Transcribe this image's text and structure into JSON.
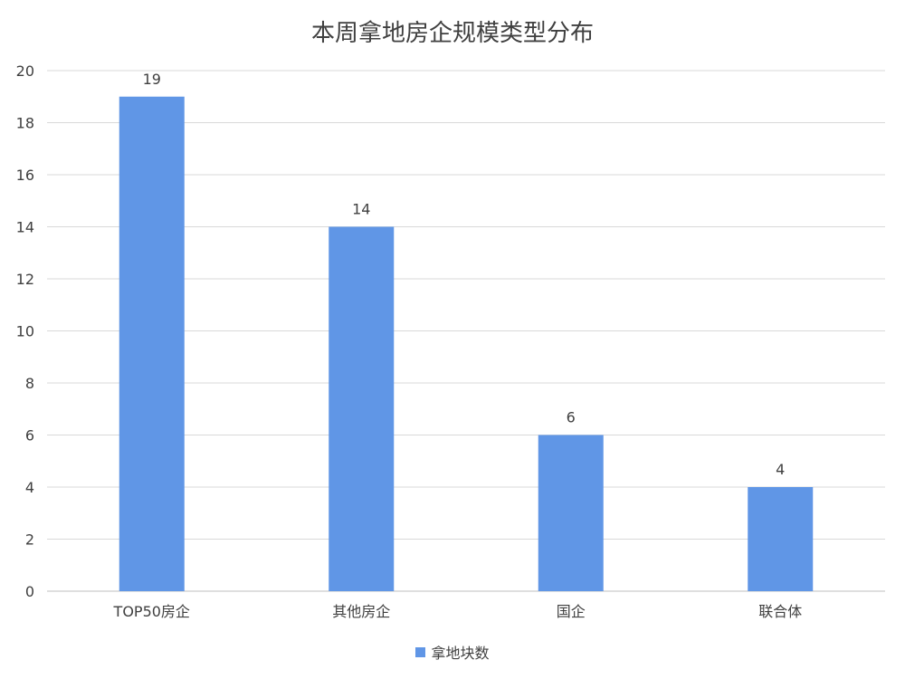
{
  "chart_data": {
    "type": "bar",
    "title": "本周拿地房企规模类型分布",
    "categories": [
      "TOP50房企",
      "其他房企",
      "国企",
      "联合体"
    ],
    "series": [
      {
        "name": "拿地块数",
        "values": [
          19,
          14,
          6,
          4
        ],
        "color": "#6096e6"
      }
    ],
    "ylim": [
      0,
      20
    ],
    "yticks": [
      0,
      2,
      4,
      6,
      8,
      10,
      12,
      14,
      16,
      18,
      20
    ],
    "grid": true,
    "legend_position": "bottom"
  }
}
